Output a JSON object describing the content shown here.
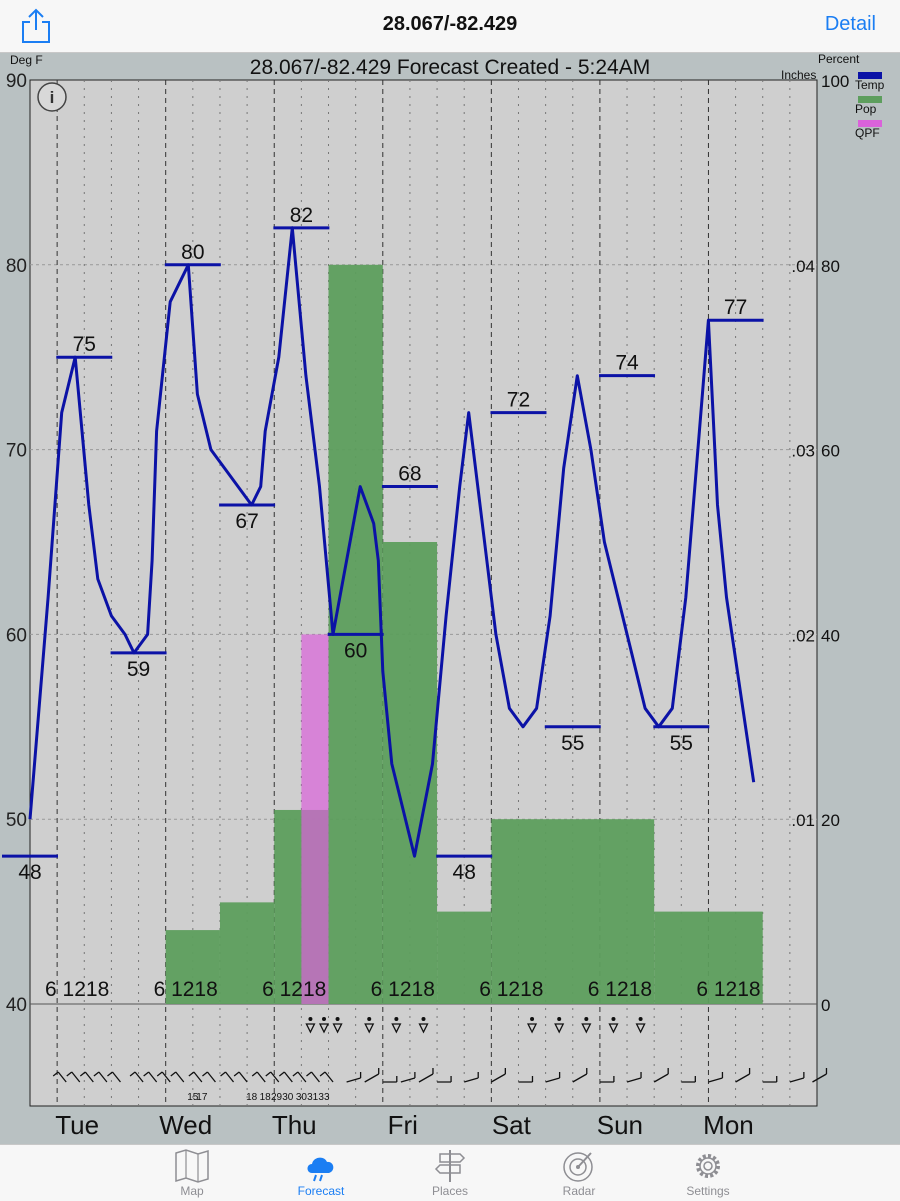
{
  "nav": {
    "title": "28.067/-82.429",
    "detail_label": "Detail",
    "share_icon": "share-icon"
  },
  "tabs": [
    {
      "label": "Map",
      "icon": "map-icon",
      "active": false
    },
    {
      "label": "Forecast",
      "icon": "forecast-icon",
      "active": true
    },
    {
      "label": "Places",
      "icon": "signpost-icon",
      "active": false
    },
    {
      "label": "Radar",
      "icon": "radar-icon",
      "active": false
    },
    {
      "label": "Settings",
      "icon": "gear-icon",
      "active": false
    }
  ],
  "chart_data": {
    "type": "line",
    "title": "28.067/-82.429 Forecast Created - 5:24AM",
    "ylabel": "Deg F",
    "y2label": "Percent",
    "y3label": "Inches",
    "ylim": [
      40,
      90
    ],
    "y_ticks": [
      40,
      50,
      60,
      70,
      80,
      90
    ],
    "y2lim": [
      0,
      100
    ],
    "y2_ticks": [
      0,
      20,
      40,
      60,
      80,
      100
    ],
    "y3lim": [
      0,
      0.05
    ],
    "y3_ticks": [
      ".01",
      ".02",
      ".03",
      ".04"
    ],
    "xlim": [
      0,
      174
    ],
    "day_start_x": [
      6,
      30,
      54,
      78,
      102,
      126,
      150
    ],
    "days": [
      "Tue",
      "Wed",
      "Thu",
      "Fri",
      "Sat",
      "Sun",
      "Mon"
    ],
    "hour_label": "6 1218",
    "legend": [
      {
        "name": "Temp",
        "color": "#0b12a6"
      },
      {
        "name": "Pop",
        "color": "#5d9e5d"
      },
      {
        "name": "QPF",
        "color": "#da62da"
      }
    ],
    "temp": {
      "x": [
        0,
        4,
        7,
        10,
        13,
        15,
        18,
        21,
        23,
        26,
        27,
        28,
        31,
        35,
        37,
        40,
        43,
        46,
        49,
        51,
        52,
        55,
        58,
        61,
        64,
        67,
        70,
        73,
        76,
        77,
        78,
        80,
        82,
        85,
        89,
        92,
        95,
        97,
        100,
        103,
        106,
        109,
        112,
        115,
        118,
        121,
        124,
        127,
        130,
        133,
        136,
        139,
        142,
        145,
        148,
        150,
        151,
        152,
        154,
        157,
        160
      ],
      "y": [
        50,
        62,
        72,
        75,
        67,
        63,
        61,
        60,
        59,
        60,
        64,
        71,
        78,
        80,
        73,
        70,
        69,
        68,
        67,
        68,
        71,
        75,
        82,
        74,
        68,
        60,
        64,
        68,
        66,
        64,
        58,
        53,
        51,
        48,
        53,
        61,
        68,
        72,
        66,
        60,
        56,
        55,
        56,
        61,
        69,
        74,
        70,
        65,
        62,
        59,
        56,
        55,
        56,
        62,
        71,
        77,
        72,
        67,
        62,
        57,
        52
      ],
      "min_max": [
        {
          "x": 0,
          "value": 48,
          "kind": "low"
        },
        {
          "x": 12,
          "value": 75,
          "kind": "high"
        },
        {
          "x": 24,
          "value": 59,
          "kind": "low"
        },
        {
          "x": 36,
          "value": 80,
          "kind": "high"
        },
        {
          "x": 48,
          "value": 67,
          "kind": "low"
        },
        {
          "x": 60,
          "value": 82,
          "kind": "high"
        },
        {
          "x": 72,
          "value": 60,
          "kind": "low"
        },
        {
          "x": 84,
          "value": 68,
          "kind": "high"
        },
        {
          "x": 96,
          "value": 48,
          "kind": "low"
        },
        {
          "x": 108,
          "value": 72,
          "kind": "high"
        },
        {
          "x": 120,
          "value": 55,
          "kind": "low"
        },
        {
          "x": 132,
          "value": 74,
          "kind": "high"
        },
        {
          "x": 144,
          "value": 55,
          "kind": "low"
        },
        {
          "x": 156,
          "value": 77,
          "kind": "high"
        }
      ]
    },
    "pop": [
      {
        "x0": 30,
        "x1": 42,
        "value": 8
      },
      {
        "x0": 42,
        "x1": 54,
        "value": 11
      },
      {
        "x0": 54,
        "x1": 66,
        "value": 21
      },
      {
        "x0": 66,
        "x1": 78,
        "value": 80
      },
      {
        "x0": 78,
        "x1": 90,
        "value": 50
      },
      {
        "x0": 90,
        "x1": 102,
        "value": 10
      },
      {
        "x0": 102,
        "x1": 138,
        "value": 20
      },
      {
        "x0": 138,
        "x1": 162,
        "value": 10
      }
    ],
    "qpf": [
      {
        "x0": 60,
        "x1": 66,
        "value": 0.02
      }
    ],
    "weather_icons_x": [
      62,
      65,
      68,
      75,
      81,
      87,
      111,
      117,
      123,
      129,
      135
    ],
    "wind_x": [
      8,
      11,
      14,
      17,
      20,
      25,
      28,
      31,
      34,
      38,
      41,
      45,
      48,
      52,
      55,
      58,
      61,
      64,
      67,
      70,
      74,
      78,
      82,
      86,
      90,
      96,
      102,
      108,
      114,
      120,
      126,
      132,
      138,
      144,
      150,
      156,
      162,
      168,
      173
    ],
    "wind_labels": [
      {
        "x": 36,
        "text": "15"
      },
      {
        "x": 38,
        "text": "17"
      },
      {
        "x": 49,
        "text": "18"
      },
      {
        "x": 52,
        "text": "18"
      },
      {
        "x": 54.5,
        "text": "29"
      },
      {
        "x": 57,
        "text": "30"
      },
      {
        "x": 60,
        "text": "30"
      },
      {
        "x": 62.5,
        "text": "31"
      },
      {
        "x": 65,
        "text": "33"
      }
    ]
  }
}
